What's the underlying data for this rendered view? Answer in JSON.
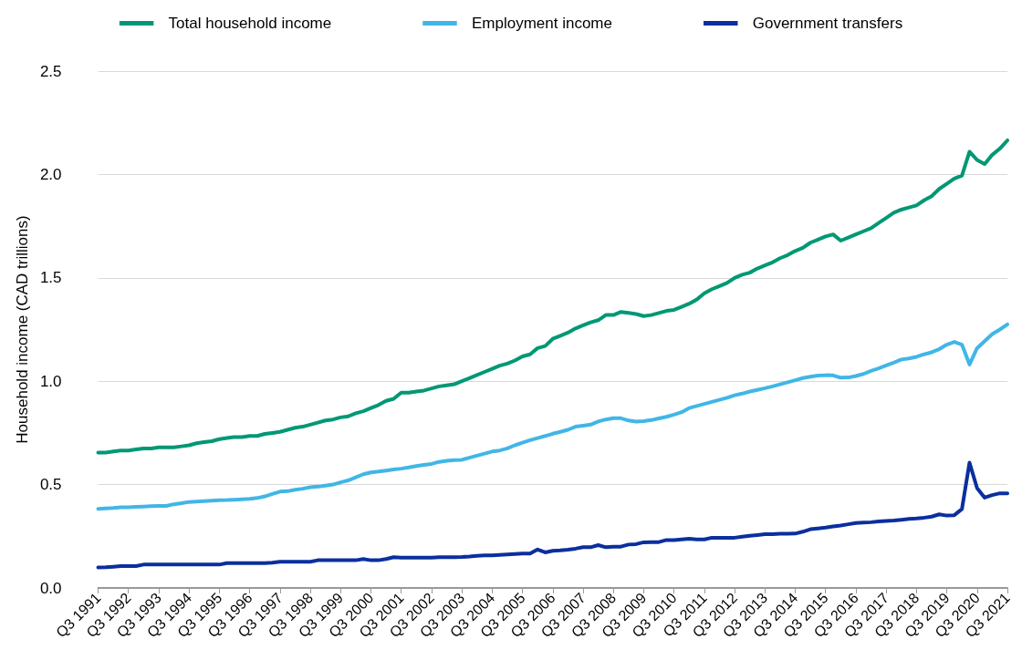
{
  "chart_data": {
    "type": "line",
    "ylabel": "Household income (CAD trillions)",
    "categories": [
      "Q3 1991",
      null,
      null,
      null,
      "Q3 1992",
      null,
      null,
      null,
      "Q3 1993",
      null,
      null,
      null,
      "Q3 1994",
      null,
      null,
      null,
      "Q3 1995",
      null,
      null,
      null,
      "Q3 1996",
      null,
      null,
      null,
      "Q3 1997",
      null,
      null,
      null,
      "Q3 1998",
      null,
      null,
      null,
      "Q3 1999",
      null,
      null,
      null,
      "Q3 2000",
      null,
      null,
      null,
      "Q3 2001",
      null,
      null,
      null,
      "Q3 2002",
      null,
      null,
      null,
      "Q3 2003",
      null,
      null,
      null,
      "Q3 2004",
      null,
      null,
      null,
      "Q3 2005",
      null,
      null,
      null,
      "Q3 2006",
      null,
      null,
      null,
      "Q3 2007",
      null,
      null,
      null,
      "Q3 2008",
      null,
      null,
      null,
      "Q3 2009",
      null,
      null,
      null,
      "Q3 2010",
      null,
      null,
      null,
      "Q3 2011",
      null,
      null,
      null,
      "Q3 2012",
      null,
      null,
      null,
      "Q3 2013",
      null,
      null,
      null,
      "Q3 2014",
      null,
      null,
      null,
      "Q3 2015",
      null,
      null,
      null,
      "Q3 2016",
      null,
      null,
      null,
      "Q3 2017",
      null,
      null,
      null,
      "Q3 2018",
      null,
      null,
      null,
      "Q3 2019",
      null,
      null,
      null,
      "Q3 2020",
      null,
      null,
      null,
      "Q3 2021"
    ],
    "series": [
      {
        "name": "Total household income",
        "color": "#009874",
        "values": [
          0.655,
          0.655,
          0.66,
          0.665,
          0.665,
          0.67,
          0.675,
          0.675,
          0.68,
          0.68,
          0.68,
          0.685,
          0.69,
          0.7,
          0.705,
          0.71,
          0.72,
          0.725,
          0.73,
          0.73,
          0.735,
          0.735,
          0.745,
          0.75,
          0.755,
          0.765,
          0.775,
          0.78,
          0.79,
          0.8,
          0.81,
          0.815,
          0.825,
          0.83,
          0.845,
          0.855,
          0.87,
          0.885,
          0.905,
          0.915,
          0.945,
          0.945,
          0.95,
          0.955,
          0.965,
          0.975,
          0.98,
          0.985,
          1.0,
          1.015,
          1.03,
          1.045,
          1.06,
          1.075,
          1.085,
          1.1,
          1.12,
          1.13,
          1.16,
          1.17,
          1.205,
          1.22,
          1.235,
          1.255,
          1.27,
          1.285,
          1.295,
          1.32,
          1.32,
          1.335,
          1.33,
          1.325,
          1.315,
          1.32,
          1.33,
          1.34,
          1.345,
          1.36,
          1.375,
          1.395,
          1.425,
          1.445,
          1.46,
          1.475,
          1.5,
          1.515,
          1.525,
          1.545,
          1.56,
          1.575,
          1.595,
          1.61,
          1.63,
          1.645,
          1.67,
          1.685,
          1.7,
          1.71,
          1.68,
          1.695,
          1.71,
          1.725,
          1.74,
          1.765,
          1.79,
          1.815,
          1.83,
          1.84,
          1.85,
          1.875,
          1.895,
          1.93,
          1.955,
          1.98,
          1.995,
          2.11,
          2.07,
          2.05,
          2.095,
          2.125,
          2.165
        ]
      },
      {
        "name": "Employment income",
        "color": "#41b6e6",
        "values": [
          0.383,
          0.385,
          0.387,
          0.39,
          0.39,
          0.392,
          0.394,
          0.396,
          0.397,
          0.397,
          0.405,
          0.41,
          0.416,
          0.418,
          0.42,
          0.422,
          0.424,
          0.425,
          0.427,
          0.429,
          0.431,
          0.435,
          0.443,
          0.455,
          0.466,
          0.468,
          0.475,
          0.48,
          0.487,
          0.49,
          0.495,
          0.5,
          0.511,
          0.52,
          0.535,
          0.55,
          0.559,
          0.563,
          0.568,
          0.573,
          0.577,
          0.583,
          0.59,
          0.595,
          0.6,
          0.61,
          0.615,
          0.618,
          0.62,
          0.63,
          0.64,
          0.65,
          0.66,
          0.665,
          0.675,
          0.69,
          0.703,
          0.715,
          0.725,
          0.735,
          0.746,
          0.755,
          0.765,
          0.78,
          0.785,
          0.79,
          0.805,
          0.815,
          0.821,
          0.821,
          0.81,
          0.805,
          0.807,
          0.812,
          0.82,
          0.828,
          0.838,
          0.85,
          0.87,
          0.88,
          0.89,
          0.9,
          0.91,
          0.92,
          0.932,
          0.94,
          0.95,
          0.958,
          0.966,
          0.975,
          0.985,
          0.995,
          1.005,
          1.015,
          1.022,
          1.027,
          1.029,
          1.028,
          1.017,
          1.018,
          1.025,
          1.035,
          1.05,
          1.062,
          1.076,
          1.09,
          1.105,
          1.11,
          1.118,
          1.13,
          1.14,
          1.155,
          1.177,
          1.19,
          1.177,
          1.081,
          1.16,
          1.194,
          1.228,
          1.25,
          1.275
        ]
      },
      {
        "name": "Government transfers",
        "color": "#0a2f9e",
        "values": [
          0.099,
          0.1,
          0.103,
          0.106,
          0.106,
          0.106,
          0.113,
          0.113,
          0.113,
          0.113,
          0.113,
          0.113,
          0.113,
          0.113,
          0.113,
          0.113,
          0.113,
          0.12,
          0.12,
          0.12,
          0.12,
          0.12,
          0.12,
          0.122,
          0.127,
          0.127,
          0.127,
          0.127,
          0.127,
          0.134,
          0.134,
          0.134,
          0.134,
          0.134,
          0.134,
          0.14,
          0.134,
          0.134,
          0.14,
          0.149,
          0.147,
          0.147,
          0.147,
          0.147,
          0.147,
          0.149,
          0.149,
          0.149,
          0.15,
          0.152,
          0.155,
          0.158,
          0.158,
          0.16,
          0.162,
          0.164,
          0.166,
          0.166,
          0.186,
          0.172,
          0.18,
          0.182,
          0.185,
          0.19,
          0.197,
          0.197,
          0.207,
          0.197,
          0.2,
          0.2,
          0.21,
          0.212,
          0.221,
          0.222,
          0.222,
          0.232,
          0.232,
          0.235,
          0.238,
          0.235,
          0.235,
          0.243,
          0.243,
          0.243,
          0.243,
          0.248,
          0.252,
          0.256,
          0.26,
          0.26,
          0.262,
          0.262,
          0.263,
          0.272,
          0.284,
          0.288,
          0.292,
          0.298,
          0.302,
          0.308,
          0.314,
          0.316,
          0.318,
          0.322,
          0.324,
          0.326,
          0.33,
          0.334,
          0.336,
          0.34,
          0.345,
          0.356,
          0.35,
          0.352,
          0.382,
          0.606,
          0.483,
          0.437,
          0.449,
          0.458,
          0.458
        ]
      }
    ],
    "ylim": [
      0,
      2.5
    ],
    "yticks": [
      {
        "value": 0,
        "label": "0.0"
      },
      0.5,
      {
        "value": 1,
        "label": "1.0"
      },
      1.5,
      {
        "value": 2,
        "label": "2.0"
      },
      2.5
    ],
    "grid": "y",
    "legend": "top",
    "marker": "none",
    "line_style": "solid"
  }
}
